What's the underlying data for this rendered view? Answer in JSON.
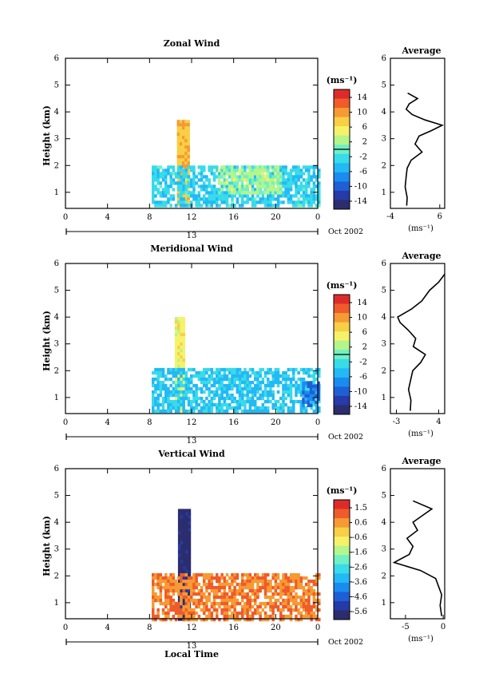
{
  "chart_data": [
    {
      "type": "heatmap",
      "title": "Zonal Wind",
      "ylabel": "Height (km)",
      "ylim": [
        0.4,
        6
      ],
      "yticks": [
        1,
        2,
        3,
        4,
        5,
        6
      ],
      "xlim": [
        0,
        24
      ],
      "xticks": [
        "0",
        "4",
        "8",
        "12",
        "16",
        "20",
        "0"
      ],
      "day_label": "13",
      "date_label": "Oct 2002",
      "colorbar": {
        "unit_label": "(ms⁻¹)",
        "ticks": [
          "14",
          "10",
          "6",
          "2",
          "-2",
          "-6",
          "-10",
          "-14"
        ],
        "range": [
          -16,
          16
        ],
        "zero_line": 0
      },
      "regions": [
        {
          "description": "tall shear column",
          "x_hours": [
            10.6,
            11.6
          ],
          "y_km": [
            0.5,
            3.7
          ],
          "value": 8
        },
        {
          "description": "boundary layer band",
          "x_hours": [
            8.2,
            24.0
          ],
          "y_km": [
            0.5,
            2.0
          ],
          "value": -3
        },
        {
          "description": "midday band",
          "x_hours": [
            14.5,
            20.5
          ],
          "y_km": [
            1.0,
            2.0
          ],
          "value": 2
        }
      ],
      "average_profile": {
        "title": "Average",
        "xlabel": "(ms⁻¹)",
        "xticks": [
          "-4",
          "6"
        ],
        "xlim": [
          -4,
          7
        ],
        "height_km": [
          0.5,
          0.8,
          1.2,
          1.6,
          1.9,
          2.2,
          2.5,
          2.8,
          3.1,
          3.3,
          3.5,
          3.7,
          3.9,
          4.1,
          4.3,
          4.5,
          4.7
        ],
        "value": [
          -0.7,
          -0.6,
          -1.0,
          -0.8,
          -0.6,
          0.2,
          2.4,
          1.0,
          1.8,
          4.3,
          6.5,
          3.0,
          0.4,
          -0.8,
          -0.2,
          1.5,
          -0.5
        ]
      }
    },
    {
      "type": "heatmap",
      "title": "Meridional Wind",
      "ylabel": "Height (km)",
      "ylim": [
        0.4,
        6
      ],
      "yticks": [
        1,
        2,
        3,
        4,
        5,
        6
      ],
      "xlim": [
        0,
        24
      ],
      "xticks": [
        "0",
        "4",
        "8",
        "12",
        "16",
        "20",
        "0"
      ],
      "day_label": "13",
      "date_label": "Oct 2002",
      "colorbar": {
        "unit_label": "(ms⁻¹)",
        "ticks": [
          "14",
          "10",
          "6",
          "2",
          "-2",
          "-6",
          "-10",
          "-14"
        ],
        "range": [
          -16,
          16
        ],
        "zero_line": 0
      },
      "regions": [
        {
          "description": "narrow column",
          "x_hours": [
            10.4,
            11.2
          ],
          "y_km": [
            0.5,
            4.0
          ],
          "value": 5
        },
        {
          "description": "boundary layer band",
          "x_hours": [
            8.2,
            24.0
          ],
          "y_km": [
            0.5,
            2.1
          ],
          "value": -4
        },
        {
          "description": "late blue patch",
          "x_hours": [
            22.5,
            24.0
          ],
          "y_km": [
            0.7,
            1.6
          ],
          "value": -9
        }
      ],
      "average_profile": {
        "title": "Average",
        "xlabel": "(ms⁻¹)",
        "xticks": [
          "-3",
          "4"
        ],
        "xlim": [
          -4,
          5
        ],
        "height_km": [
          0.5,
          0.9,
          1.3,
          1.7,
          2.0,
          2.3,
          2.6,
          2.9,
          3.2,
          3.5,
          3.8,
          4.0,
          4.3,
          4.6,
          5.0,
          5.3,
          5.6
        ],
        "value": [
          -0.7,
          -0.6,
          -1.0,
          -0.6,
          -0.3,
          1.0,
          1.8,
          -0.2,
          0.2,
          -1.0,
          -2.4,
          -2.8,
          -0.5,
          1.2,
          2.5,
          4.0,
          5.0
        ]
      }
    },
    {
      "type": "heatmap",
      "title": "Vertical Wind",
      "ylabel": "Height (km)",
      "ylim": [
        0.4,
        6
      ],
      "yticks": [
        1,
        2,
        3,
        4,
        5,
        6
      ],
      "xlim": [
        0,
        24
      ],
      "xticks": [
        "0",
        "4",
        "8",
        "12",
        "16",
        "20",
        "0"
      ],
      "day_label": "13",
      "xlabel": "Local Time",
      "date_label": "Oct 2002",
      "colorbar": {
        "unit_label": "(ms⁻¹)",
        "ticks": [
          "1.5",
          "0.6",
          "-0.6",
          "-1.6",
          "-2.6",
          "-3.6",
          "-4.6",
          "-5.6"
        ],
        "range": [
          -6.1,
          2.0
        ]
      },
      "regions": [
        {
          "description": "strong downdraft column",
          "x_hours": [
            10.7,
            11.7
          ],
          "y_km": [
            0.4,
            4.5
          ],
          "value": -5.8
        },
        {
          "description": "weak updraft band",
          "x_hours": [
            8.2,
            24.0
          ],
          "y_km": [
            0.4,
            2.1
          ],
          "value": 0.7
        }
      ],
      "average_profile": {
        "title": "Average",
        "xlabel": "(ms⁻¹)",
        "xticks": [
          "-5",
          "0"
        ],
        "xlim": [
          -7,
          0.2
        ],
        "height_km": [
          0.5,
          0.9,
          1.3,
          1.6,
          1.9,
          2.2,
          2.5,
          2.8,
          3.1,
          3.4,
          3.7,
          4.0,
          4.2,
          4.5,
          4.8
        ],
        "value": [
          -0.2,
          -0.4,
          -0.2,
          -0.6,
          -1.0,
          -3.0,
          -6.5,
          -4.5,
          -4.0,
          -4.8,
          -3.4,
          -4.0,
          -3.0,
          -1.5,
          -4.0
        ]
      }
    }
  ]
}
